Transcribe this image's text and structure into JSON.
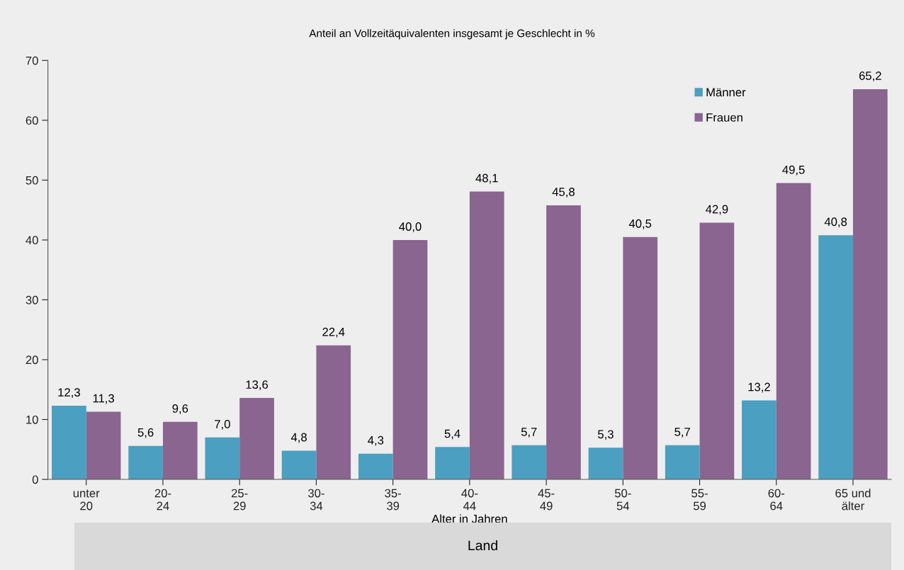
{
  "chart_data": {
    "type": "bar",
    "title": "Anteil an Vollzeitäquivalenten insgesamt je Geschlecht in %",
    "xlabel": "Alter in Jahren",
    "categories": [
      "unter\n20",
      "20-\n24",
      "25-\n29",
      "30-\n34",
      "35-\n39",
      "40-\n44",
      "45-\n49",
      "50-\n54",
      "55-\n59",
      "60-\n64",
      "65 und\nälter"
    ],
    "series": [
      {
        "name": "Männer",
        "color": "#4b9fc1",
        "values": [
          12.3,
          5.6,
          7.0,
          4.8,
          4.3,
          5.4,
          5.7,
          5.3,
          5.7,
          13.2,
          40.8
        ],
        "value_labels": [
          "12,3",
          "5,6",
          "7,0",
          "4,8",
          "4,3",
          "5,4",
          "5,7",
          "5,3",
          "5,7",
          "13,2",
          "40,8"
        ]
      },
      {
        "name": "Frauen",
        "color": "#8a6590",
        "values": [
          11.3,
          9.6,
          13.6,
          22.4,
          40.0,
          48.1,
          45.8,
          40.5,
          42.9,
          49.5,
          65.2
        ],
        "value_labels": [
          "11,3",
          "9,6",
          "13,6",
          "22,4",
          "40,0",
          "48,1",
          "45,8",
          "40,5",
          "42,9",
          "49,5",
          "65,2"
        ]
      }
    ],
    "ylim": [
      0,
      70
    ],
    "yticks": [
      0,
      10,
      20,
      30,
      40,
      50,
      60,
      70
    ],
    "grid": false,
    "legend": "top right",
    "annotations": [
      "Land"
    ]
  }
}
